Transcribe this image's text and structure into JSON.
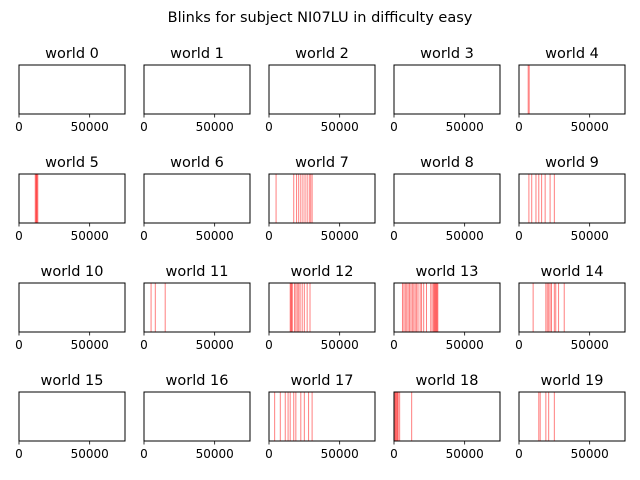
{
  "chart_data": {
    "type": "event-raster",
    "title": "Blinks for subject NI07LU in difficulty easy",
    "event_color": "#ff0000",
    "xlim": [
      0,
      75000
    ],
    "xticks": [
      0,
      50000
    ],
    "xtick_labels": [
      "0",
      "50000"
    ],
    "grid": false,
    "layout": {
      "rows": 4,
      "cols": 5
    },
    "panels": [
      {
        "title": "world 0",
        "events": []
      },
      {
        "title": "world 1",
        "events": []
      },
      {
        "title": "world 2",
        "events": []
      },
      {
        "title": "world 3",
        "events": []
      },
      {
        "title": "world 4",
        "events": [
          6500,
          7200
        ]
      },
      {
        "title": "world 5",
        "events": [
          11500,
          12000,
          12400,
          12800,
          13300
        ]
      },
      {
        "title": "world 6",
        "events": []
      },
      {
        "title": "world 7",
        "events": [
          5000,
          17500,
          19500,
          21000,
          22500,
          24000,
          25500,
          27000,
          28500,
          29500,
          30500
        ]
      },
      {
        "title": "world 8",
        "events": []
      },
      {
        "title": "world 9",
        "events": [
          7000,
          9000,
          12000,
          14000,
          16000,
          18500,
          22000,
          25000
        ]
      },
      {
        "title": "world 10",
        "events": []
      },
      {
        "title": "world 11",
        "events": [
          5000,
          8000,
          15000
        ]
      },
      {
        "title": "world 12",
        "events": [
          15000,
          15500,
          16000,
          16500,
          18000,
          19000,
          20000,
          21000,
          22000,
          23500,
          25000,
          27000,
          29000
        ]
      },
      {
        "title": "world 13",
        "events": [
          6000,
          7000,
          8000,
          9000,
          10000,
          11000,
          12000,
          13000,
          14000,
          15000,
          16000,
          17000,
          18500,
          19500,
          21000,
          23000,
          26000,
          27000,
          28000,
          28500,
          29000,
          29500,
          30000,
          30500,
          31000
        ]
      },
      {
        "title": "world 14",
        "events": [
          10000,
          19000,
          20000,
          21000,
          22000,
          23000,
          25000,
          26000,
          28000,
          32000
        ]
      },
      {
        "title": "world 15",
        "events": []
      },
      {
        "title": "world 16",
        "events": []
      },
      {
        "title": "world 17",
        "events": [
          4000,
          8000,
          11500,
          13500,
          15000,
          17500,
          19000,
          22500,
          25000,
          28000,
          30500
        ]
      },
      {
        "title": "world 18",
        "events": [
          500,
          1000,
          1500,
          2000,
          2500,
          3000,
          4000,
          12500
        ]
      },
      {
        "title": "world 19",
        "events": [
          14000,
          15000,
          19000,
          21000,
          25000
        ]
      }
    ]
  }
}
